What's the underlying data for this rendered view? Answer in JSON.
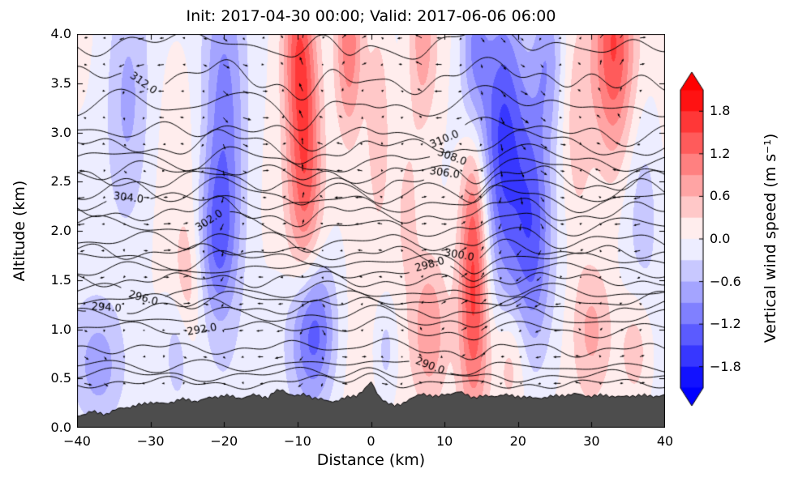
{
  "chart_data": {
    "type": "heatmap",
    "subtype": "vertical cross-section: filled contours of vertical wind speed, potential-temperature isentropes (K), wind vectors, terrain silhouette",
    "title": "Init: 2017-04-30 00:00; Valid: 2017-06-06 06:00",
    "xlabel": "Distance (km)",
    "ylabel": "Altitude (km)",
    "xlim": [
      -40,
      40
    ],
    "ylim": [
      0,
      4
    ],
    "xticks": [
      "−40",
      "−30",
      "−20",
      "−10",
      "0",
      "10",
      "20",
      "30",
      "40"
    ],
    "xtick_values": [
      -40,
      -30,
      -20,
      -10,
      0,
      10,
      20,
      30,
      40
    ],
    "yticks": [
      "0.0",
      "0.5",
      "1.0",
      "1.5",
      "2.0",
      "2.5",
      "3.0",
      "3.5",
      "4.0"
    ],
    "ytick_values": [
      0,
      0.5,
      1,
      1.5,
      2,
      2.5,
      3,
      3.5,
      4
    ],
    "grid": false,
    "colorbar": {
      "label": "Vertical wind speed (m s⁻¹)",
      "ticks": [
        "1.8",
        "1.2",
        "0.6",
        "0.0",
        "−0.6",
        "−1.2",
        "−1.8"
      ],
      "tick_values": [
        1.8,
        1.2,
        0.6,
        0,
        -0.6,
        -1.2,
        -1.8
      ],
      "vmax": 2.1,
      "step": 0.3,
      "cmap": "bwr",
      "extend": "both"
    },
    "isentropes": {
      "units": "K",
      "interval": 1,
      "levels": [
        [
          288,
          0.45
        ],
        [
          289,
          0.53
        ],
        [
          290,
          0.62
        ],
        [
          291,
          0.8
        ],
        [
          292,
          1.0
        ],
        [
          293,
          1.12
        ],
        [
          294,
          1.22
        ],
        [
          295,
          1.3
        ],
        [
          296,
          1.38
        ],
        [
          297,
          1.5
        ],
        [
          298,
          1.6
        ],
        [
          299,
          1.7
        ],
        [
          300,
          1.78
        ],
        [
          301,
          1.9
        ],
        [
          302,
          2.05
        ],
        [
          303,
          2.18
        ],
        [
          304,
          2.3
        ],
        [
          305,
          2.4
        ],
        [
          306,
          2.5
        ],
        [
          307,
          2.6
        ],
        [
          308,
          2.72
        ],
        [
          309,
          2.86
        ],
        [
          310,
          3.0
        ],
        [
          311,
          3.28
        ],
        [
          312,
          3.55
        ],
        [
          313,
          3.9
        ]
      ],
      "labels": [
        {
          "value": 290,
          "x": 8
        },
        {
          "value": 292,
          "x": -23
        },
        {
          "value": 294,
          "x": -36
        },
        {
          "value": 296,
          "x": -31
        },
        {
          "value": 298,
          "x": 8
        },
        {
          "value": 300,
          "x": 12
        },
        {
          "value": 302,
          "x": -22
        },
        {
          "value": 304,
          "x": -33
        },
        {
          "value": 306,
          "x": 10
        },
        {
          "value": 308,
          "x": 11
        },
        {
          "value": 310,
          "x": 10
        },
        {
          "value": 312,
          "x": -31
        }
      ]
    },
    "w_cells": [
      [
        -20,
        3.0,
        -1.2,
        2.2,
        1.2
      ],
      [
        -21,
        1.9,
        -0.8,
        1.8,
        0.55
      ],
      [
        -33,
        3.3,
        -0.7,
        2.2,
        0.9
      ],
      [
        -37,
        0.6,
        -0.7,
        2.5,
        0.45
      ],
      [
        -26,
        0.8,
        -0.6,
        1.4,
        0.4
      ],
      [
        -8,
        1.0,
        -1.6,
        2.2,
        0.55
      ],
      [
        2,
        0.8,
        -0.55,
        1.2,
        0.4
      ],
      [
        18,
        3.0,
        -1.5,
        2.2,
        1.1
      ],
      [
        22,
        2.0,
        -1.1,
        1.8,
        0.9
      ],
      [
        14,
        3.9,
        -0.9,
        1.4,
        0.7
      ],
      [
        24,
        3.8,
        -0.8,
        1.5,
        0.6
      ],
      [
        37,
        2.3,
        -0.55,
        2.0,
        0.8
      ],
      [
        -9,
        2.7,
        1.5,
        1.7,
        1.0
      ],
      [
        -10,
        3.9,
        1.0,
        1.5,
        0.6
      ],
      [
        -3,
        3.9,
        1.3,
        1.4,
        0.7
      ],
      [
        1,
        3.2,
        0.6,
        1.3,
        0.8
      ],
      [
        7,
        3.9,
        0.8,
        1.4,
        0.6
      ],
      [
        5,
        2.3,
        0.35,
        1.2,
        0.6
      ],
      [
        14,
        1.2,
        1.5,
        1.5,
        0.8
      ],
      [
        14,
        2.3,
        0.8,
        1.2,
        0.6
      ],
      [
        33,
        3.9,
        1.5,
        2.0,
        0.8
      ],
      [
        28,
        3.0,
        0.5,
        1.5,
        0.8
      ],
      [
        -25,
        1.3,
        0.55,
        1.3,
        0.6
      ],
      [
        8,
        1.0,
        0.8,
        1.6,
        0.5
      ],
      [
        19,
        0.7,
        0.6,
        1.5,
        0.4
      ],
      [
        30,
        1.0,
        0.7,
        2.0,
        0.5
      ],
      [
        36,
        0.8,
        0.55,
        1.5,
        0.4
      ]
    ],
    "w_waves": [
      [
        0.1,
        0.09,
        1.2,
        0.5
      ],
      [
        0.08,
        0.2,
        -0.8,
        2.0
      ]
    ],
    "terrain_color": "#4d4d4d",
    "terrain_km": [
      [
        -40,
        0.12
      ],
      [
        -38,
        0.16
      ],
      [
        -36,
        0.14
      ],
      [
        -34,
        0.2
      ],
      [
        -32,
        0.22
      ],
      [
        -30,
        0.26
      ],
      [
        -28,
        0.24
      ],
      [
        -26,
        0.29
      ],
      [
        -24,
        0.27
      ],
      [
        -22,
        0.3
      ],
      [
        -20,
        0.33
      ],
      [
        -18,
        0.3
      ],
      [
        -16,
        0.33
      ],
      [
        -14,
        0.31
      ],
      [
        -13,
        0.37
      ],
      [
        -12,
        0.38
      ],
      [
        -11,
        0.34
      ],
      [
        -10,
        0.32
      ],
      [
        -9,
        0.34
      ],
      [
        -8,
        0.31
      ],
      [
        -7,
        0.29
      ],
      [
        -6,
        0.27
      ],
      [
        -5,
        0.27
      ],
      [
        -4,
        0.29
      ],
      [
        -3,
        0.31
      ],
      [
        -2,
        0.33
      ],
      [
        -1,
        0.38
      ],
      [
        0,
        0.46
      ],
      [
        0.5,
        0.4
      ],
      [
        1,
        0.33
      ],
      [
        2,
        0.26
      ],
      [
        3,
        0.22
      ],
      [
        4,
        0.24
      ],
      [
        5,
        0.28
      ],
      [
        6,
        0.31
      ],
      [
        7,
        0.35
      ],
      [
        8,
        0.33
      ],
      [
        9,
        0.31
      ],
      [
        10,
        0.34
      ],
      [
        12,
        0.36
      ],
      [
        14,
        0.31
      ],
      [
        16,
        0.32
      ],
      [
        18,
        0.33
      ],
      [
        20,
        0.32
      ],
      [
        22,
        0.3
      ],
      [
        24,
        0.31
      ],
      [
        26,
        0.33
      ],
      [
        28,
        0.34
      ],
      [
        30,
        0.32
      ],
      [
        32,
        0.33
      ],
      [
        34,
        0.31
      ],
      [
        36,
        0.33
      ],
      [
        38,
        0.32
      ],
      [
        40,
        0.33
      ]
    ]
  }
}
